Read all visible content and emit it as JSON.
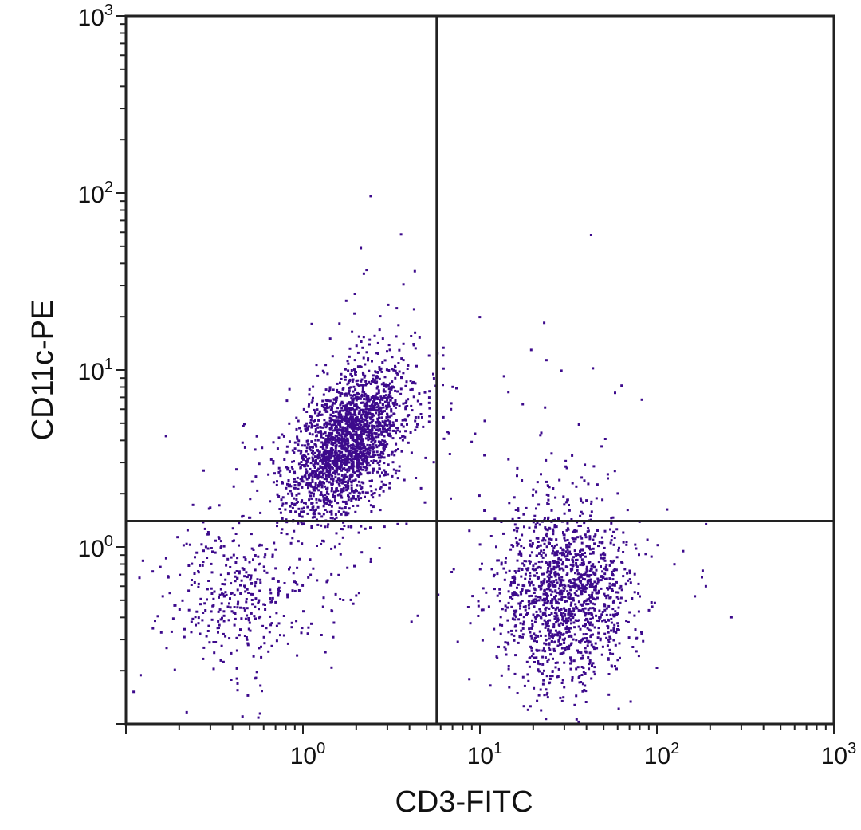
{
  "chart_data": {
    "type": "scatter",
    "xlabel": "CD3-FITC",
    "ylabel": "CD11c-PE",
    "x_scale": "log",
    "y_scale": "log",
    "xlim": [
      0.1,
      1000
    ],
    "ylim": [
      0.1,
      1000
    ],
    "x_ticks": [
      {
        "value": 1,
        "base": "10",
        "exp": "0"
      },
      {
        "value": 10,
        "base": "10",
        "exp": "1"
      },
      {
        "value": 100,
        "base": "10",
        "exp": "2"
      },
      {
        "value": 1000,
        "base": "10",
        "exp": "3"
      }
    ],
    "y_ticks": [
      {
        "value": 1,
        "base": "10",
        "exp": "0"
      },
      {
        "value": 10,
        "base": "10",
        "exp": "1"
      },
      {
        "value": 100,
        "base": "10",
        "exp": "2"
      },
      {
        "value": 1000,
        "base": "10",
        "exp": "3"
      }
    ],
    "quadrant_gates": {
      "x": 5.7,
      "y": 1.4
    },
    "grid": false,
    "point_color": "#3d0a8c",
    "populations": [
      {
        "x_center": 1.8,
        "y_center": 4.0,
        "x_spread_log10": 0.16,
        "y_spread_log10": 0.21,
        "count": 2200
      },
      {
        "x_center": 30,
        "y_center": 0.55,
        "x_spread_log10": 0.18,
        "y_spread_log10": 0.3,
        "count": 1500
      },
      {
        "x_center": 0.42,
        "y_center": 0.55,
        "x_spread_log10": 0.22,
        "y_spread_log10": 0.25,
        "count": 400
      }
    ]
  }
}
